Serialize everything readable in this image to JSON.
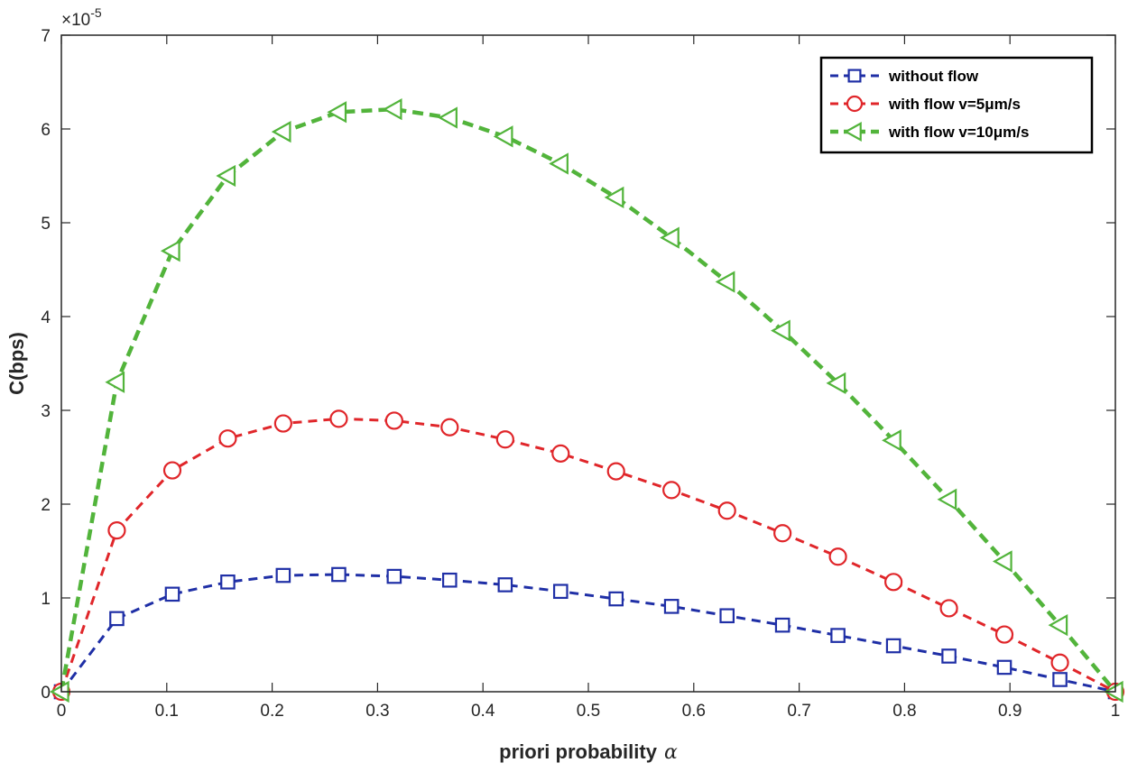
{
  "chart_data": {
    "type": "line",
    "title": "",
    "xlabel": "priori probability",
    "xlabel_symbol": "α",
    "ylabel": "C(bps)",
    "y_multiplier_label": "×10",
    "y_multiplier_exp": "-5",
    "xlim": [
      0,
      1
    ],
    "ylim": [
      0,
      7
    ],
    "xticks": [
      0,
      0.1,
      0.2,
      0.3,
      0.4,
      0.5,
      0.6,
      0.7,
      0.8,
      0.9,
      1
    ],
    "xtick_labels": [
      "0",
      "0.1",
      "0.2",
      "0.3",
      "0.4",
      "0.5",
      "0.6",
      "0.7",
      "0.8",
      "0.9",
      "1"
    ],
    "yticks": [
      0,
      1,
      2,
      3,
      4,
      5,
      6,
      7
    ],
    "ytick_labels": [
      "0",
      "1",
      "2",
      "3",
      "4",
      "5",
      "6",
      "7"
    ],
    "grid": false,
    "legend_position": "top-right",
    "x": [
      0,
      0.0526,
      0.1053,
      0.1579,
      0.2105,
      0.2632,
      0.3158,
      0.3684,
      0.4211,
      0.4737,
      0.5263,
      0.5789,
      0.6316,
      0.6842,
      0.7368,
      0.7895,
      0.8421,
      0.8947,
      0.9474,
      1
    ],
    "series": [
      {
        "name": "without flow",
        "color": "#1f2fa6",
        "marker": "square",
        "values": [
          0,
          0.78,
          1.04,
          1.17,
          1.24,
          1.25,
          1.23,
          1.19,
          1.14,
          1.07,
          0.99,
          0.91,
          0.81,
          0.71,
          0.6,
          0.49,
          0.38,
          0.26,
          0.13,
          0
        ]
      },
      {
        "name": "with flow v=5μm/s",
        "color": "#e0262a",
        "marker": "circle",
        "values": [
          0,
          1.72,
          2.36,
          2.7,
          2.86,
          2.91,
          2.89,
          2.82,
          2.69,
          2.54,
          2.35,
          2.15,
          1.93,
          1.69,
          1.44,
          1.17,
          0.89,
          0.61,
          0.31,
          0
        ]
      },
      {
        "name": "with flow v=10μm/s",
        "color": "#52b43b",
        "marker": "triangle-left",
        "values": [
          0,
          3.3,
          4.7,
          5.5,
          5.97,
          6.18,
          6.21,
          6.12,
          5.92,
          5.63,
          5.27,
          4.84,
          4.37,
          3.85,
          3.29,
          2.68,
          2.05,
          1.39,
          0.71,
          0
        ]
      }
    ]
  }
}
